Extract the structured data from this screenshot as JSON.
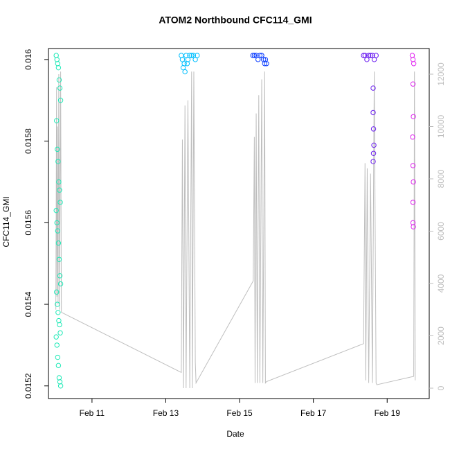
{
  "chart_data": {
    "type": "scatter",
    "title": "ATOM2 Northbound CFC114_GMI",
    "x_label": "Date",
    "y_label": "CFC114_GMI",
    "xlim": [
      9.82,
      20.14
    ],
    "ylim": [
      0.015169,
      0.016027
    ],
    "y2lim": [
      -397,
      12980
    ],
    "xticks": [
      {
        "value": 11,
        "label": "Feb 11"
      },
      {
        "value": 13,
        "label": "Feb 13"
      },
      {
        "value": 15,
        "label": "Feb 15"
      },
      {
        "value": 17,
        "label": "Feb 17"
      },
      {
        "value": 19,
        "label": "Feb 19"
      }
    ],
    "yticks": [
      0.0152,
      0.0154,
      0.0156,
      0.0158,
      0.016
    ],
    "y2ticks": [
      0,
      2000,
      4000,
      6000,
      8000,
      10000,
      12000
    ],
    "series": [
      {
        "axis": "y2",
        "color": "#bebebe",
        "x": [
          10.02,
          10.04,
          10.05,
          10.06,
          10.08,
          10.1,
          10.12,
          10.15,
          10.17,
          13.42,
          13.45,
          13.48,
          13.52,
          13.55,
          13.6,
          13.65,
          13.7,
          13.72,
          13.76,
          13.8,
          13.82,
          15.37,
          15.4,
          15.42,
          15.45,
          15.48,
          15.52,
          15.55,
          15.6,
          15.63,
          15.68,
          15.7,
          15.73,
          18.36,
          18.4,
          18.42,
          18.46,
          18.5,
          18.55,
          18.6,
          18.65,
          18.7,
          18.72,
          19.72,
          19.74,
          19.76
        ],
        "values": [
          3000,
          11500,
          3500,
          10000,
          3200,
          12000,
          3000,
          12100,
          2900,
          600,
          9500,
          0,
          10800,
          0,
          11000,
          0,
          12100,
          0,
          12100,
          1000,
          200,
          4100,
          9600,
          200,
          10500,
          200,
          11200,
          200,
          11800,
          200,
          12100,
          200,
          250,
          1700,
          8600,
          300,
          8400,
          200,
          8200,
          200,
          12100,
          200,
          130,
          450,
          12100,
          300
        ]
      },
      {
        "color": "#1de9b6",
        "x": [
          10.03,
          10.05,
          10.07,
          10.09,
          10.11,
          10.13,
          10.15,
          10.04,
          10.06,
          10.08,
          10.1,
          10.12,
          10.14,
          10.03,
          10.05,
          10.07,
          10.09,
          10.11,
          10.13,
          10.15,
          10.04,
          10.06,
          10.08,
          10.1,
          10.12,
          10.14,
          10.03,
          10.05,
          10.07,
          10.09,
          10.11,
          10.13,
          10.15
        ],
        "values": [
          0.01601,
          0.016,
          0.01599,
          0.01598,
          0.01595,
          0.01593,
          0.0159,
          0.01585,
          0.01578,
          0.01575,
          0.0157,
          0.01568,
          0.01565,
          0.01563,
          0.0156,
          0.01558,
          0.01555,
          0.01551,
          0.01547,
          0.01545,
          0.01543,
          0.0154,
          0.01538,
          0.01536,
          0.01535,
          0.01533,
          0.01532,
          0.0153,
          0.01527,
          0.01525,
          0.01522,
          0.01521,
          0.0152
        ]
      },
      {
        "color": "#00bfff",
        "x": [
          13.42,
          13.45,
          13.5,
          13.55,
          13.6,
          13.65,
          13.7,
          13.75,
          13.8,
          13.85,
          13.47,
          13.52,
          13.58
        ],
        "values": [
          0.01601,
          0.016,
          0.01599,
          0.01601,
          0.016,
          0.01601,
          0.01601,
          0.01601,
          0.016,
          0.01601,
          0.01598,
          0.01597,
          0.01599
        ]
      },
      {
        "color": "#0a3cff",
        "x": [
          15.36,
          15.4,
          15.45,
          15.5,
          15.55,
          15.6,
          15.65,
          15.7,
          15.73,
          15.68
        ],
        "values": [
          0.01601,
          0.01601,
          0.01601,
          0.016,
          0.01601,
          0.01601,
          0.016,
          0.016,
          0.01599,
          0.01599
        ]
      },
      {
        "color": "#6a1cf0",
        "x": [
          18.36,
          18.4,
          18.45,
          18.5,
          18.55,
          18.6,
          18.65,
          18.7,
          18.62,
          18.62,
          18.63,
          18.64,
          18.63,
          18.62
        ],
        "values": [
          0.01601,
          0.01601,
          0.016,
          0.01601,
          0.01601,
          0.01601,
          0.016,
          0.01601,
          0.01593,
          0.01587,
          0.01583,
          0.01579,
          0.01577,
          0.01575
        ]
      },
      {
        "color": "#e020f0",
        "x": [
          19.68,
          19.7,
          19.72,
          19.7,
          19.71,
          19.69,
          19.7,
          19.71,
          19.7,
          19.7,
          19.71
        ],
        "values": [
          0.01601,
          0.016,
          0.01599,
          0.01594,
          0.01586,
          0.01581,
          0.01574,
          0.0157,
          0.01565,
          0.0156,
          0.01559
        ]
      }
    ]
  }
}
